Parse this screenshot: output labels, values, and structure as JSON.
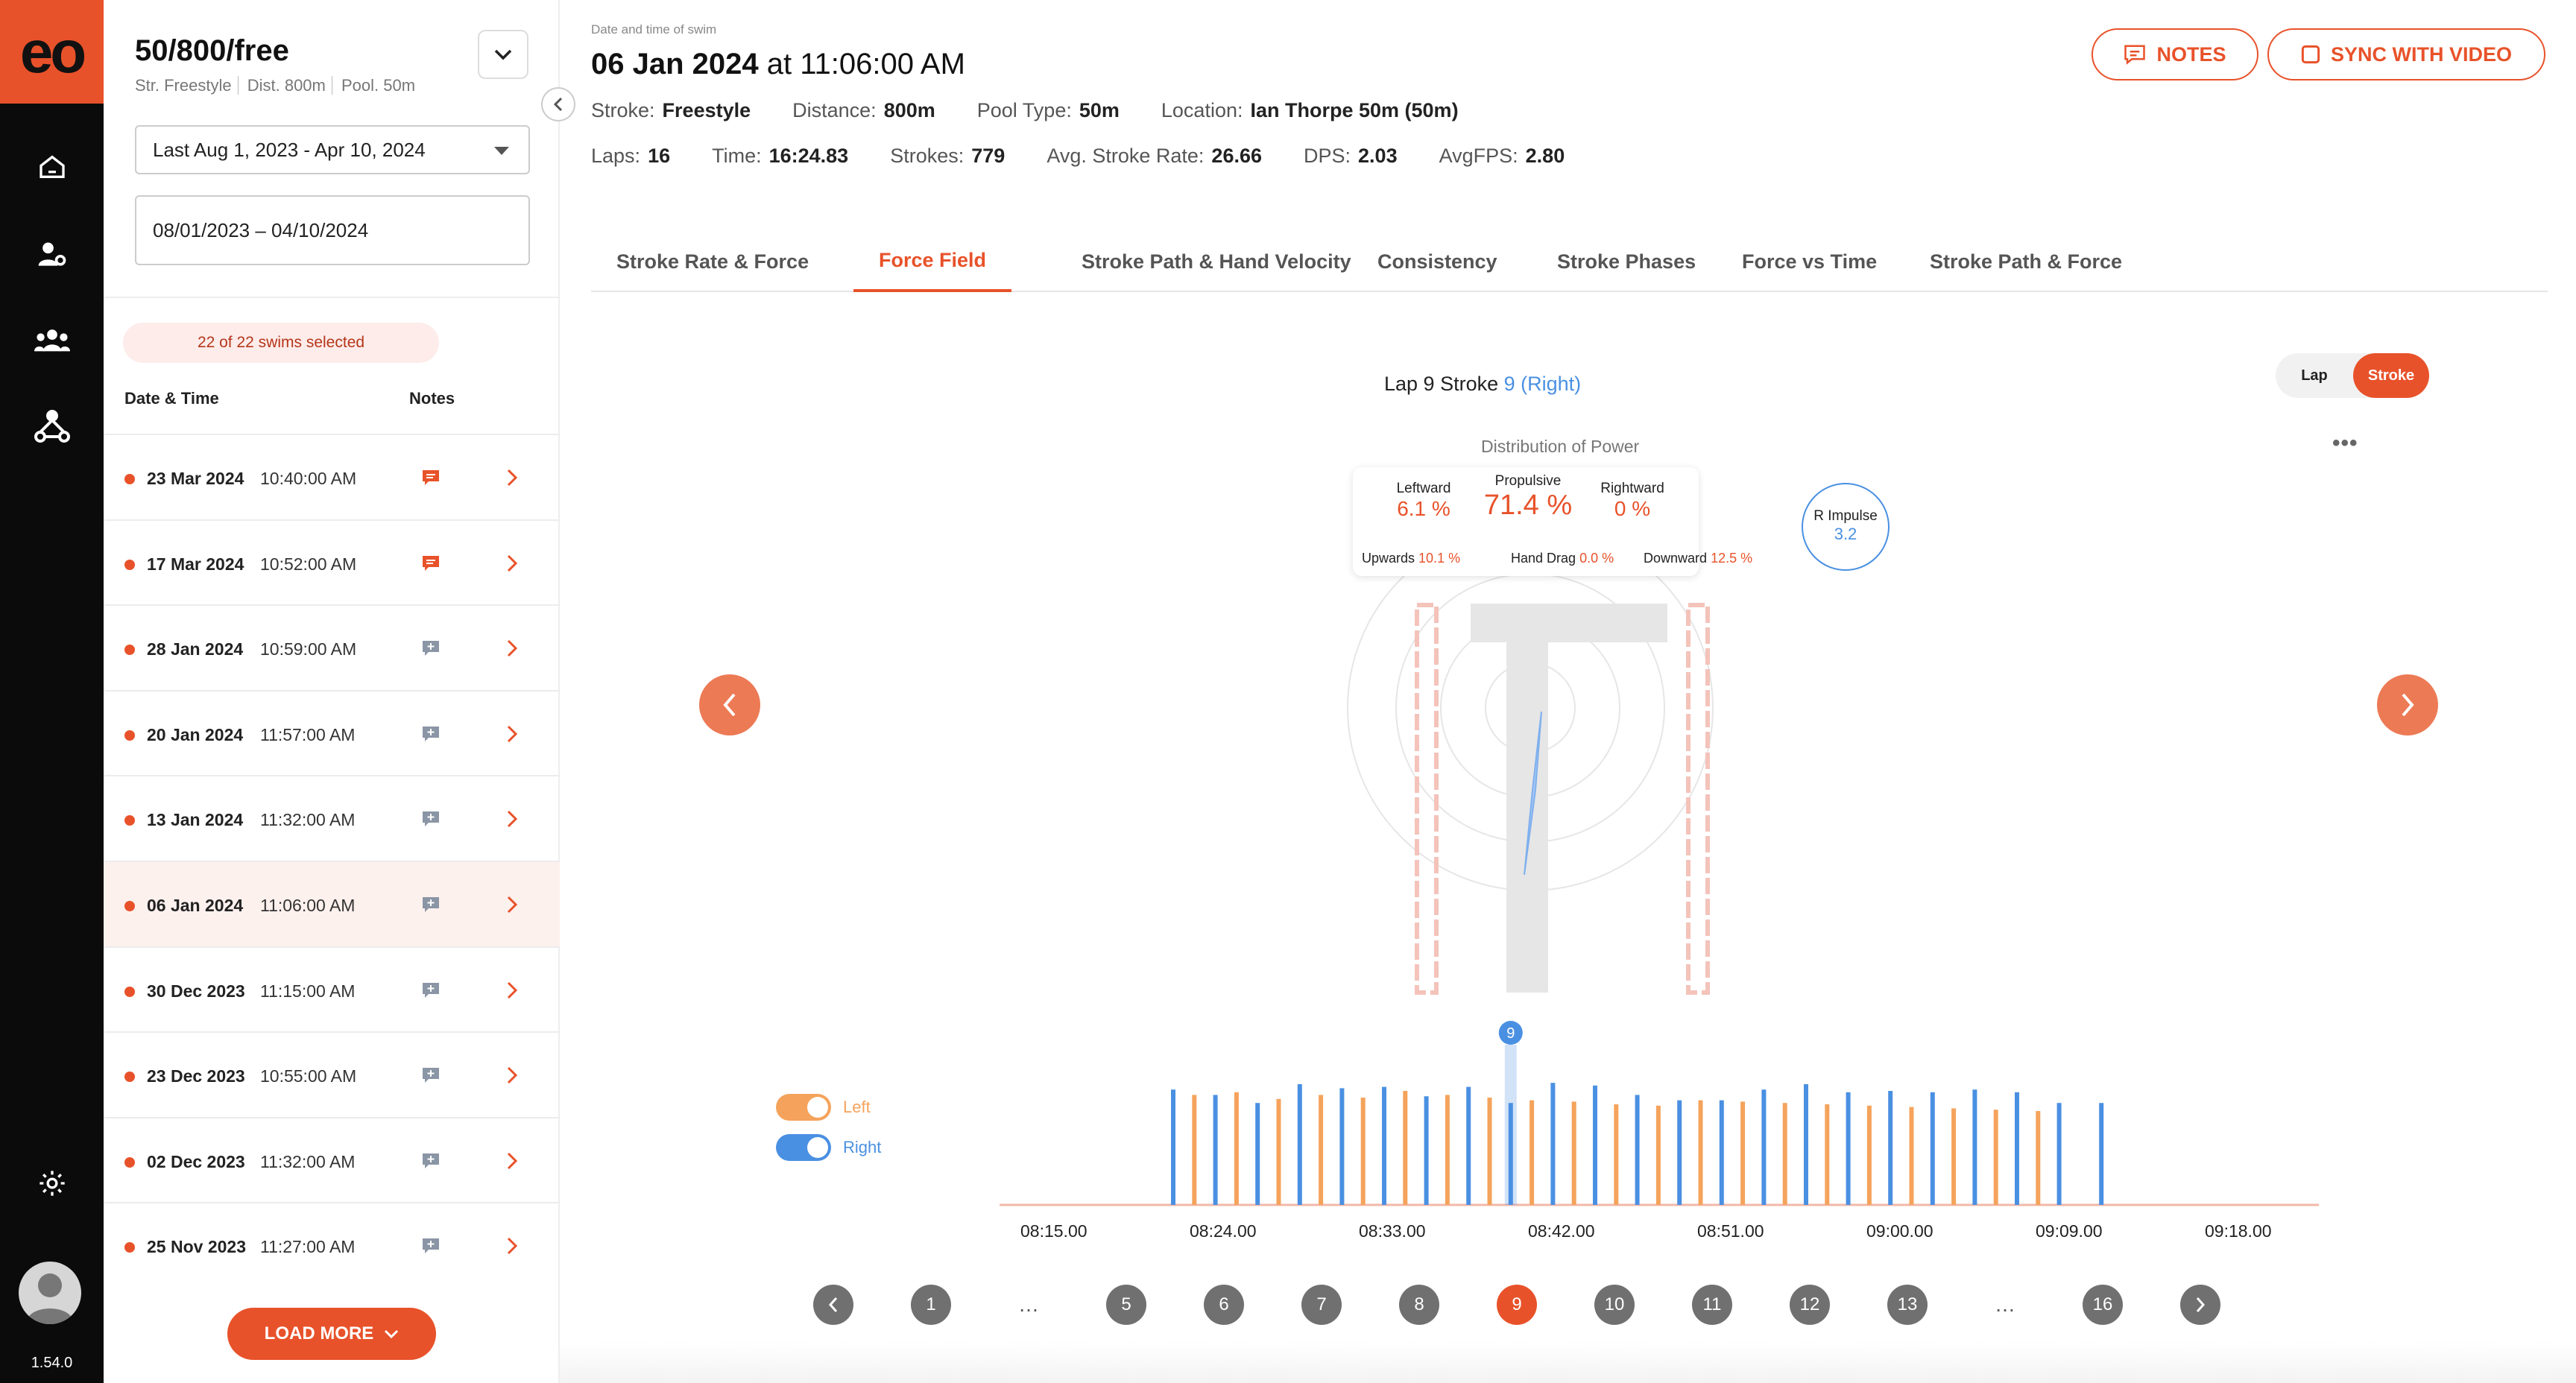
{
  "app": {
    "logo": "eo",
    "version": "1.54.0",
    "nav_icons": [
      "home-icon",
      "user-settings-icon",
      "team-icon",
      "network-icon",
      "settings-icon"
    ]
  },
  "sidebar": {
    "title": "50/800/free",
    "subtitle": [
      "Str. Freestyle",
      "Dist. 800m",
      "Pool. 50m"
    ],
    "period_select": "Last  Aug 1, 2023 - Apr 10, 2024",
    "date_range": "08/01/2023 – 04/10/2024",
    "selected_pill": "22 of 22 swims selected",
    "headers": {
      "date": "Date & Time",
      "notes": "Notes"
    },
    "rows": [
      {
        "date": "23 Mar 2024",
        "time": "10:40:00 AM",
        "note": "filled"
      },
      {
        "date": "17 Mar 2024",
        "time": "10:52:00 AM",
        "note": "filled"
      },
      {
        "date": "28 Jan 2024",
        "time": "10:59:00 AM",
        "note": "add"
      },
      {
        "date": "20 Jan 2024",
        "time": "11:57:00 AM",
        "note": "add"
      },
      {
        "date": "13 Jan 2024",
        "time": "11:32:00 AM",
        "note": "add"
      },
      {
        "date": "06 Jan 2024",
        "time": "11:06:00 AM",
        "note": "add"
      },
      {
        "date": "30 Dec 2023",
        "time": "11:15:00 AM",
        "note": "add"
      },
      {
        "date": "23 Dec 2023",
        "time": "10:55:00 AM",
        "note": "add"
      },
      {
        "date": "02 Dec 2023",
        "time": "11:32:00 AM",
        "note": "add"
      },
      {
        "date": "25 Nov 2023",
        "time": "11:27:00 AM",
        "note": "add"
      }
    ],
    "active_row": 5,
    "load_more": "LOAD MORE"
  },
  "swim": {
    "label": "Date and time of swim",
    "date": "06 Jan 2024",
    "at": "at",
    "time": "11:06:00 AM",
    "meta1": [
      {
        "k": "Stroke:",
        "v": "Freestyle"
      },
      {
        "k": "Distance:",
        "v": "800m"
      },
      {
        "k": "Pool Type:",
        "v": "50m"
      },
      {
        "k": "Location:",
        "v": "Ian Thorpe 50m (50m)"
      }
    ],
    "meta2": [
      {
        "k": "Laps:",
        "v": "16"
      },
      {
        "k": "Time:",
        "v": "16:24.83"
      },
      {
        "k": "Strokes:",
        "v": "779"
      },
      {
        "k": "Avg. Stroke Rate:",
        "v": "26.66"
      },
      {
        "k": "DPS:",
        "v": "2.03"
      },
      {
        "k": "AvgFPS:",
        "v": "2.80"
      }
    ],
    "notes_btn": "NOTES",
    "sync_btn": "SYNC WITH VIDEO"
  },
  "tabs": [
    "Stroke Rate & Force",
    "Force Field",
    "Stroke Path & Hand Velocity",
    "Consistency",
    "Stroke Phases",
    "Force vs Time",
    "Stroke Path & Force"
  ],
  "active_tab": 1,
  "viewer": {
    "lap_title": "Lap 9 Stroke",
    "stroke_num": "9 (Right)",
    "toggle_lap": "Lap",
    "toggle_stroke": "Stroke",
    "dist_title": "Distribution of Power",
    "more": "•••",
    "leftward_label": "Leftward",
    "leftward": "6.1 %",
    "propulsive_label": "Propulsive",
    "propulsive": "71.4 %",
    "rightward_label": "Rightward",
    "rightward": "0 %",
    "upwards_label": "Upwards",
    "upwards": "10.1 %",
    "handdrag_label": "Hand Drag",
    "handdrag": "0.0 %",
    "downward_label": "Downward",
    "downward": "12.5 %",
    "impulse_label": "R Impulse",
    "impulse": "3.2"
  },
  "legend": {
    "left": "Left",
    "right": "Right",
    "left_color": "#f5a35c",
    "right_color": "#4a90e2"
  },
  "chart_data": {
    "type": "bar",
    "x_tick_labels": [
      "08:15.00",
      "08:24.00",
      "08:33.00",
      "08:42.00",
      "08:51.00",
      "09:00.00",
      "09:09.00",
      "09:18.00"
    ],
    "marker_label": "9",
    "series": [
      {
        "name": "Left",
        "values": [
          82,
          84,
          79,
          82,
          80,
          85,
          82,
          80,
          78,
          77,
          75,
          74,
          78,
          77,
          76,
          75,
          74,
          73,
          72,
          71,
          70
        ]
      },
      {
        "name": "Right",
        "values": [
          86,
          82,
          76,
          90,
          87,
          88,
          81,
          88,
          76,
          91,
          89,
          82,
          78,
          78,
          86,
          90,
          84,
          85,
          84,
          86,
          84,
          76,
          76
        ]
      }
    ]
  },
  "pager": [
    "1",
    "…",
    "5",
    "6",
    "7",
    "8",
    "9",
    "10",
    "11",
    "12",
    "13",
    "…",
    "16"
  ],
  "pager_current": "9"
}
